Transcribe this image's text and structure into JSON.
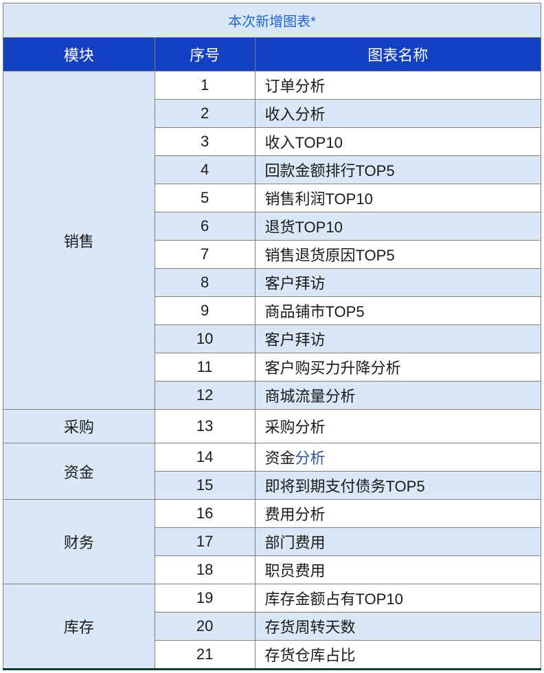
{
  "colors": {
    "title_bg": "#dae7f6",
    "title_text": "#1f66d1",
    "header_bg": "#1440c4",
    "header_text": "#ffffff",
    "row_white": "#ffffff",
    "row_light": "#dae7f6",
    "border": "#7f7f7f",
    "text": "#1a1a1a",
    "link_text": "#2f5597",
    "bottom_border": "#0b3a2a"
  },
  "col_widths": [
    "221px",
    "146px",
    "417px"
  ],
  "title": "本次新增图表*",
  "headers": [
    "模块",
    "序号",
    "图表名称"
  ],
  "groups": [
    {
      "module": "销售",
      "rows": [
        {
          "seq": "1",
          "name": "订单分析"
        },
        {
          "seq": "2",
          "name": "收入分析"
        },
        {
          "seq": "3",
          "name": "收入TOP10"
        },
        {
          "seq": "4",
          "name": "回款金额排行TOP5"
        },
        {
          "seq": "5",
          "name": "销售利润TOP10"
        },
        {
          "seq": "6",
          "name": "退货TOP10"
        },
        {
          "seq": "7",
          "name": "销售退货原因TOP5"
        },
        {
          "seq": "8",
          "name": "客户拜访"
        },
        {
          "seq": "9",
          "name": "商品铺市TOP5"
        },
        {
          "seq": "10",
          "name": "客户拜访"
        },
        {
          "seq": "11",
          "name": "客户购买力升降分析"
        },
        {
          "seq": "12",
          "name": "商城流量分析"
        }
      ]
    },
    {
      "module": "采购",
      "rows": [
        {
          "seq": "13",
          "name": "采购分析"
        }
      ]
    },
    {
      "module": "资金",
      "rows": [
        {
          "seq": "14",
          "name_parts": [
            {
              "text": "资金",
              "color": "#1a1a1a"
            },
            {
              "text": "分析",
              "color": "#2f5597"
            }
          ]
        },
        {
          "seq": "15",
          "name": "即将到期支付债务TOP5"
        }
      ]
    },
    {
      "module": "财务",
      "rows": [
        {
          "seq": "16",
          "name": "费用分析"
        },
        {
          "seq": "17",
          "name": "部门费用"
        },
        {
          "seq": "18",
          "name": "职员费用"
        }
      ]
    },
    {
      "module": "库存",
      "rows": [
        {
          "seq": "19",
          "name": "库存金额占有TOP10"
        },
        {
          "seq": "20",
          "name": "存货周转天数"
        },
        {
          "seq": "21",
          "name": "存货仓库占比"
        }
      ]
    }
  ]
}
